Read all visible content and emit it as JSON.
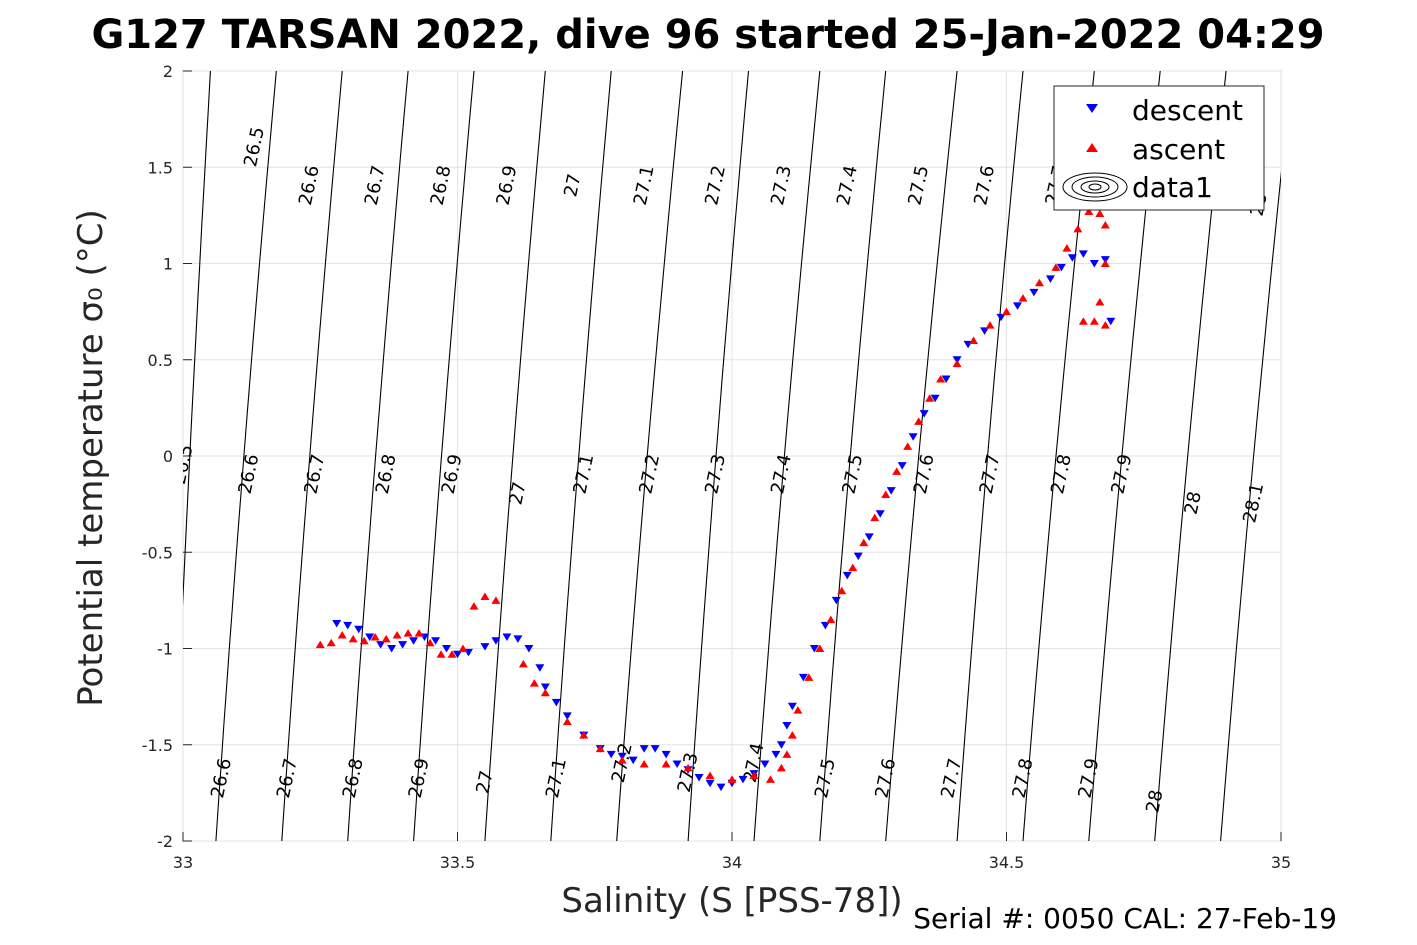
{
  "chart_data": {
    "type": "scatter",
    "title": "G127 TARSAN 2022, dive 96 started 25-Jan-2022 04:29",
    "xlabel": "Salinity (S [PSS-78])",
    "ylabel": "Potential temperature σ₀ (°C)",
    "footer": "Serial #: 0050  CAL: 27-Feb-19",
    "xlim": [
      33,
      35
    ],
    "ylim": [
      -2,
      2
    ],
    "xticks": [
      "33",
      "33.5",
      "34",
      "34.5",
      "35"
    ],
    "yticks": [
      "-2",
      "-1.5",
      "-1",
      "-0.5",
      "0",
      "0.5",
      "1",
      "1.5",
      "2"
    ],
    "grid": true,
    "legend_position": "top-right",
    "legend": [
      "descent",
      "ascent",
      "data1"
    ],
    "contour_levels": [
      "26.5",
      "26.6",
      "26.7",
      "26.8",
      "26.9",
      "27",
      "27.1",
      "27.2",
      "27.3",
      "27.4",
      "27.5",
      "27.6",
      "27.7",
      "27.8",
      "27.9",
      "28",
      "28.1"
    ],
    "contour_lines": [
      {
        "label": "26.5",
        "S_bottom": 32.98,
        "S_top": 33.05,
        "labels": [
          [
            33.01,
            -0.05
          ],
          [
            33.14,
            1.6
          ]
        ]
      },
      {
        "label": "26.6",
        "S_bottom": 33.06,
        "S_top": 33.17,
        "labels": [
          [
            33.08,
            -1.68
          ],
          [
            33.13,
            -0.1
          ],
          [
            33.24,
            1.4
          ]
        ]
      },
      {
        "label": "26.7",
        "S_bottom": 33.18,
        "S_top": 33.29,
        "labels": [
          [
            33.2,
            -1.68
          ],
          [
            33.25,
            -0.1
          ],
          [
            33.36,
            1.4
          ]
        ]
      },
      {
        "label": "26.8",
        "S_bottom": 33.3,
        "S_top": 33.41,
        "labels": [
          [
            33.32,
            -1.68
          ],
          [
            33.38,
            -0.1
          ],
          [
            33.48,
            1.4
          ]
        ]
      },
      {
        "label": "26.9",
        "S_bottom": 33.42,
        "S_top": 33.53,
        "labels": [
          [
            33.44,
            -1.68
          ],
          [
            33.5,
            -0.1
          ],
          [
            33.6,
            1.4
          ]
        ]
      },
      {
        "label": "27",
        "S_bottom": 33.55,
        "S_top": 33.66,
        "labels": [
          [
            33.56,
            -1.7
          ],
          [
            33.62,
            -0.2
          ],
          [
            33.72,
            1.4
          ]
        ]
      },
      {
        "label": "27.1",
        "S_bottom": 33.67,
        "S_top": 33.78,
        "labels": [
          [
            33.69,
            -1.68
          ],
          [
            33.74,
            -0.1
          ],
          [
            33.85,
            1.4
          ]
        ]
      },
      {
        "label": "27.2",
        "S_bottom": 33.79,
        "S_top": 33.91,
        "labels": [
          [
            33.81,
            -1.6
          ],
          [
            33.86,
            -0.1
          ],
          [
            33.98,
            1.4
          ]
        ]
      },
      {
        "label": "27.3",
        "S_bottom": 33.92,
        "S_top": 34.03,
        "labels": [
          [
            33.93,
            -1.65
          ],
          [
            33.98,
            -0.1
          ],
          [
            34.1,
            1.4
          ]
        ]
      },
      {
        "label": "27.4",
        "S_bottom": 34.04,
        "S_top": 34.16,
        "labels": [
          [
            34.05,
            -1.6
          ],
          [
            34.1,
            -0.1
          ],
          [
            34.22,
            1.4
          ]
        ]
      },
      {
        "label": "27.5",
        "S_bottom": 34.16,
        "S_top": 34.28,
        "labels": [
          [
            34.18,
            -1.68
          ],
          [
            34.23,
            -0.1
          ],
          [
            34.35,
            1.4
          ]
        ]
      },
      {
        "label": "27.6",
        "S_bottom": 34.28,
        "S_top": 34.41,
        "labels": [
          [
            34.29,
            -1.68
          ],
          [
            34.36,
            -0.1
          ],
          [
            34.47,
            1.4
          ]
        ]
      },
      {
        "label": "27.7",
        "S_bottom": 34.41,
        "S_top": 34.53,
        "labels": [
          [
            34.41,
            -1.68
          ],
          [
            34.48,
            -0.1
          ],
          [
            34.6,
            1.4
          ]
        ]
      },
      {
        "label": "27.8",
        "S_bottom": 34.53,
        "S_top": 34.66,
        "labels": [
          [
            34.54,
            -1.68
          ],
          [
            34.61,
            -0.1
          ]
        ]
      },
      {
        "label": "27.9",
        "S_bottom": 34.65,
        "S_top": 34.78,
        "labels": [
          [
            34.66,
            -1.68
          ],
          [
            34.72,
            -0.1
          ]
        ]
      },
      {
        "label": "28",
        "S_bottom": 34.77,
        "S_top": 34.9,
        "labels": [
          [
            34.78,
            -1.8
          ],
          [
            34.85,
            -0.25
          ],
          [
            34.97,
            1.3
          ]
        ]
      },
      {
        "label": "28.1",
        "S_bottom": 34.89,
        "S_top": 35.02,
        "labels": [
          [
            34.96,
            -0.25
          ]
        ]
      }
    ],
    "series": [
      {
        "name": "descent",
        "color": "#0000ff",
        "marker": "triangle-down",
        "points": [
          [
            33.28,
            -0.87
          ],
          [
            33.3,
            -0.88
          ],
          [
            33.32,
            -0.9
          ],
          [
            33.34,
            -0.94
          ],
          [
            33.36,
            -0.98
          ],
          [
            33.38,
            -1.0
          ],
          [
            33.4,
            -0.98
          ],
          [
            33.42,
            -0.96
          ],
          [
            33.44,
            -0.94
          ],
          [
            33.46,
            -0.96
          ],
          [
            33.48,
            -1.0
          ],
          [
            33.5,
            -1.03
          ],
          [
            33.52,
            -1.02
          ],
          [
            33.55,
            -0.99
          ],
          [
            33.57,
            -0.96
          ],
          [
            33.59,
            -0.94
          ],
          [
            33.61,
            -0.95
          ],
          [
            33.63,
            -1.0
          ],
          [
            33.65,
            -1.1
          ],
          [
            33.66,
            -1.2
          ],
          [
            33.68,
            -1.28
          ],
          [
            33.7,
            -1.35
          ],
          [
            33.73,
            -1.45
          ],
          [
            33.76,
            -1.52
          ],
          [
            33.78,
            -1.55
          ],
          [
            33.8,
            -1.56
          ],
          [
            33.82,
            -1.58
          ],
          [
            33.84,
            -1.52
          ],
          [
            33.86,
            -1.52
          ],
          [
            33.88,
            -1.55
          ],
          [
            33.9,
            -1.6
          ],
          [
            33.92,
            -1.63
          ],
          [
            33.94,
            -1.67
          ],
          [
            33.96,
            -1.7
          ],
          [
            33.98,
            -1.72
          ],
          [
            34.0,
            -1.7
          ],
          [
            34.02,
            -1.68
          ],
          [
            34.04,
            -1.65
          ],
          [
            34.06,
            -1.6
          ],
          [
            34.08,
            -1.55
          ],
          [
            34.09,
            -1.5
          ],
          [
            34.1,
            -1.4
          ],
          [
            34.11,
            -1.3
          ],
          [
            34.13,
            -1.15
          ],
          [
            34.15,
            -1.0
          ],
          [
            34.17,
            -0.88
          ],
          [
            34.19,
            -0.75
          ],
          [
            34.21,
            -0.62
          ],
          [
            34.23,
            -0.52
          ],
          [
            34.25,
            -0.42
          ],
          [
            34.27,
            -0.3
          ],
          [
            34.29,
            -0.18
          ],
          [
            34.31,
            -0.05
          ],
          [
            34.33,
            0.1
          ],
          [
            34.35,
            0.22
          ],
          [
            34.37,
            0.3
          ],
          [
            34.39,
            0.4
          ],
          [
            34.41,
            0.5
          ],
          [
            34.43,
            0.58
          ],
          [
            34.46,
            0.65
          ],
          [
            34.49,
            0.72
          ],
          [
            34.52,
            0.78
          ],
          [
            34.55,
            0.85
          ],
          [
            34.58,
            0.92
          ],
          [
            34.6,
            0.98
          ],
          [
            34.62,
            1.03
          ],
          [
            34.64,
            1.05
          ],
          [
            34.66,
            1.0
          ],
          [
            34.68,
            1.02
          ],
          [
            34.69,
            0.7
          ]
        ]
      },
      {
        "name": "ascent",
        "color": "#ff0000",
        "marker": "triangle-up",
        "points": [
          [
            33.25,
            -0.98
          ],
          [
            33.27,
            -0.97
          ],
          [
            33.29,
            -0.93
          ],
          [
            33.31,
            -0.95
          ],
          [
            33.33,
            -0.96
          ],
          [
            33.35,
            -0.94
          ],
          [
            33.37,
            -0.95
          ],
          [
            33.39,
            -0.93
          ],
          [
            33.41,
            -0.92
          ],
          [
            33.43,
            -0.92
          ],
          [
            33.45,
            -0.97
          ],
          [
            33.47,
            -1.03
          ],
          [
            33.49,
            -1.03
          ],
          [
            33.51,
            -1.0
          ],
          [
            33.53,
            -0.78
          ],
          [
            33.55,
            -0.73
          ],
          [
            33.57,
            -0.75
          ],
          [
            33.62,
            -1.08
          ],
          [
            33.64,
            -1.18
          ],
          [
            33.66,
            -1.23
          ],
          [
            33.7,
            -1.38
          ],
          [
            33.73,
            -1.45
          ],
          [
            33.76,
            -1.52
          ],
          [
            33.8,
            -1.58
          ],
          [
            33.84,
            -1.6
          ],
          [
            33.88,
            -1.6
          ],
          [
            33.92,
            -1.62
          ],
          [
            33.96,
            -1.66
          ],
          [
            34.0,
            -1.68
          ],
          [
            34.04,
            -1.66
          ],
          [
            34.07,
            -1.68
          ],
          [
            34.09,
            -1.62
          ],
          [
            34.1,
            -1.55
          ],
          [
            34.11,
            -1.45
          ],
          [
            34.12,
            -1.32
          ],
          [
            34.14,
            -1.15
          ],
          [
            34.16,
            -1.0
          ],
          [
            34.18,
            -0.85
          ],
          [
            34.2,
            -0.7
          ],
          [
            34.22,
            -0.58
          ],
          [
            34.24,
            -0.45
          ],
          [
            34.26,
            -0.32
          ],
          [
            34.28,
            -0.2
          ],
          [
            34.3,
            -0.08
          ],
          [
            34.32,
            0.05
          ],
          [
            34.34,
            0.18
          ],
          [
            34.36,
            0.3
          ],
          [
            34.38,
            0.4
          ],
          [
            34.41,
            0.48
          ],
          [
            34.44,
            0.6
          ],
          [
            34.47,
            0.68
          ],
          [
            34.5,
            0.75
          ],
          [
            34.53,
            0.82
          ],
          [
            34.56,
            0.9
          ],
          [
            34.59,
            0.98
          ],
          [
            34.61,
            1.08
          ],
          [
            34.63,
            1.18
          ],
          [
            34.65,
            1.27
          ],
          [
            34.67,
            1.26
          ],
          [
            34.68,
            1.2
          ],
          [
            34.68,
            1.0
          ],
          [
            34.67,
            0.8
          ],
          [
            34.66,
            0.7
          ],
          [
            34.68,
            0.68
          ],
          [
            34.64,
            0.7
          ]
        ]
      }
    ]
  }
}
